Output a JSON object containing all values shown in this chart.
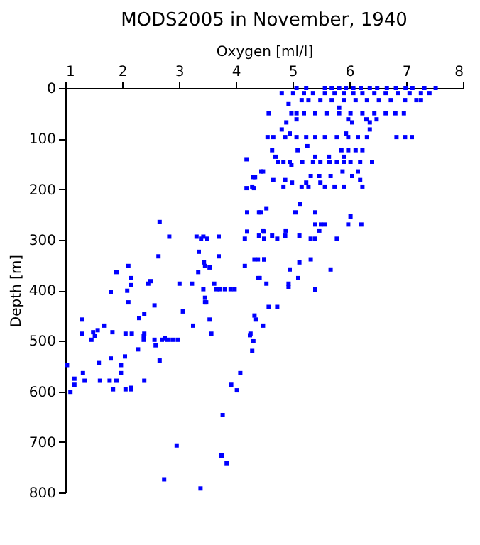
{
  "chart_data": {
    "type": "scatter",
    "title": "MODS2005 in November, 1940",
    "xlabel": "Oxygen [ml/l]",
    "ylabel": "Depth [m]",
    "xlim": [
      1,
      8
    ],
    "xticks": [
      1,
      2,
      3,
      4,
      5,
      6,
      7,
      8
    ],
    "ylim": [
      800,
      0
    ],
    "yticks": [
      0,
      100,
      200,
      300,
      400,
      500,
      600,
      700,
      800
    ],
    "grid": false,
    "marker": "square",
    "series": [
      {
        "color": "#0000ff",
        "x": [
          5.07,
          5.24,
          5.57,
          5.69,
          5.82,
          5.94,
          6.07,
          6.2,
          6.36,
          6.49,
          6.66,
          6.82,
          6.99,
          7.11,
          7.32,
          7.52,
          4.81,
          5.01,
          5.2,
          5.36,
          5.57,
          5.74,
          5.9,
          6.07,
          6.23,
          6.44,
          6.64,
          6.85,
          7.06,
          7.26,
          7.41,
          5.16,
          5.28,
          5.49,
          5.69,
          5.9,
          6.11,
          6.31,
          6.52,
          6.73,
          6.98,
          7.18,
          7.26,
          4.93,
          5.82,
          4.58,
          4.98,
          5.07,
          5.2,
          5.4,
          5.61,
          5.82,
          6.02,
          6.23,
          6.44,
          6.64,
          6.81,
          6.96,
          5.07,
          5.98,
          6.3,
          6.48,
          4.89,
          6.05,
          6.36,
          4.81,
          6.36,
          4.95,
          5.94,
          4.56,
          4.66,
          4.87,
          5.07,
          5.24,
          5.4,
          5.57,
          5.78,
          5.98,
          6.15,
          6.31,
          6.83,
          6.98,
          7.1,
          5.26,
          4.64,
          5.09,
          5.86,
          5.98,
          6.11,
          6.23,
          4.7,
          5.4,
          5.64,
          5.9,
          4.74,
          4.84,
          4.95,
          5.17,
          5.36,
          5.49,
          5.65,
          5.78,
          5.9,
          6.02,
          6.19,
          6.4,
          4.98,
          4.45,
          5.88,
          6.15,
          5.32,
          5.47,
          5.67,
          6.05,
          4.31,
          4.66,
          4.87,
          6.19,
          4.99,
          5.24,
          5.49,
          4.29,
          4.84,
          5.16,
          5.28,
          5.57,
          5.74,
          5.9,
          6.23,
          5.13,
          4.54,
          4.41,
          5.05,
          5.4,
          6.02,
          5.4,
          5.5,
          5.57,
          5.98,
          6.21,
          4.48,
          4.88,
          5.47,
          4.41,
          4.64,
          4.87,
          5.12,
          4.5,
          4.73,
          5.32,
          5.4,
          5.78,
          4.33,
          4.5,
          5.32,
          5.12,
          4.95,
          5.67,
          4.4,
          5.1,
          4.54,
          4.93,
          5.4,
          4.19,
          4.48,
          4.34,
          4.19,
          4.32,
          4.2,
          4.44,
          2.66,
          4.2,
          4.5,
          2.83,
          3.31,
          3.43,
          3.7,
          3.39,
          3.5,
          4.16,
          3.35,
          2.64,
          3.7,
          4.39,
          4.5,
          3.44,
          2.11,
          3.46,
          4.16,
          3.54,
          3.34,
          1.9,
          2.15,
          4.42,
          2.5,
          2.46,
          3.01,
          3.23,
          3.62,
          2.16,
          3.43,
          3.66,
          3.72,
          3.81,
          3.91,
          3.98,
          2.09,
          1.8,
          3.46,
          2.11,
          3.46,
          3.48,
          2.57,
          3.07,
          2.39,
          2.3,
          1.29,
          3.54,
          4.36,
          1.68,
          3.25,
          1.57,
          1.49,
          1.83,
          1.29,
          2.06,
          2.17,
          2.39,
          3.57,
          4.26,
          1.52,
          2.38,
          2.75,
          1.46,
          2.38,
          2.57,
          2.7,
          2.8,
          2.89,
          2.98,
          4.31,
          2.59,
          2.28,
          4.29,
          2.05,
          1.8,
          2.66,
          1.59,
          1.98,
          1.03,
          1.31,
          1.98,
          4.08,
          1.16,
          1.34,
          1.61,
          1.78,
          1.9,
          2.39,
          1.16,
          3.92,
          2.16,
          1.84,
          2.06,
          2.15,
          4.02,
          1.09,
          3.77,
          2.96,
          3.75,
          3.84,
          2.74,
          3.38,
          4.93,
          5.4,
          4.58,
          4.73,
          4.33,
          4.48,
          4.25
        ],
        "values": [
          0,
          0,
          0,
          0,
          0,
          0,
          0,
          0,
          0,
          0,
          0,
          0,
          0,
          0,
          0,
          0,
          10,
          10,
          10,
          10,
          10,
          10,
          10,
          10,
          10,
          10,
          10,
          10,
          10,
          10,
          10,
          24,
          24,
          24,
          24,
          24,
          24,
          24,
          24,
          24,
          24,
          24,
          24,
          32,
          39,
          50,
          50,
          50,
          50,
          50,
          50,
          50,
          50,
          50,
          50,
          50,
          50,
          50,
          62,
          62,
          62,
          62,
          68,
          68,
          68,
          82,
          82,
          90,
          90,
          97,
          97,
          97,
          97,
          97,
          97,
          97,
          97,
          97,
          97,
          97,
          97,
          97,
          97,
          115,
          123,
          123,
          123,
          123,
          123,
          123,
          136,
          136,
          136,
          136,
          146,
          146,
          146,
          146,
          146,
          146,
          146,
          146,
          146,
          146,
          146,
          146,
          153,
          165,
          165,
          165,
          174,
          174,
          174,
          174,
          176,
          182,
          182,
          182,
          187,
          187,
          187,
          195,
          195,
          195,
          195,
          195,
          195,
          195,
          195,
          229,
          238,
          246,
          246,
          246,
          254,
          270,
          270,
          270,
          270,
          270,
          282,
          282,
          282,
          292,
          292,
          292,
          292,
          298,
          298,
          298,
          298,
          298,
          339,
          339,
          339,
          345,
          359,
          359,
          376,
          376,
          387,
          387,
          398,
          141,
          165,
          176,
          198,
          198,
          246,
          246,
          265,
          284,
          284,
          294,
          294,
          294,
          294,
          298,
          298,
          298,
          324,
          333,
          333,
          339,
          339,
          345,
          352,
          352,
          352,
          355,
          364,
          364,
          376,
          376,
          382,
          387,
          387,
          387,
          387,
          390,
          398,
          398,
          398,
          398,
          398,
          398,
          401,
          404,
          415,
          424,
          424,
          424,
          430,
          442,
          447,
          455,
          458,
          458,
          458,
          470,
          470,
          479,
          483,
          483,
          486,
          486,
          486,
          486,
          486,
          486,
          490,
          490,
          495,
          498,
          498,
          498,
          498,
          498,
          498,
          498,
          501,
          509,
          517,
          520,
          531,
          535,
          539,
          544,
          548,
          548,
          564,
          564,
          564,
          575,
          579,
          579,
          579,
          579,
          579,
          587,
          587,
          593,
          596,
          596,
          596,
          598,
          601,
          647,
          707,
          727,
          742,
          774,
          792,
          393,
          399,
          433,
          433,
          450,
          470,
          489
        ]
      }
    ]
  }
}
